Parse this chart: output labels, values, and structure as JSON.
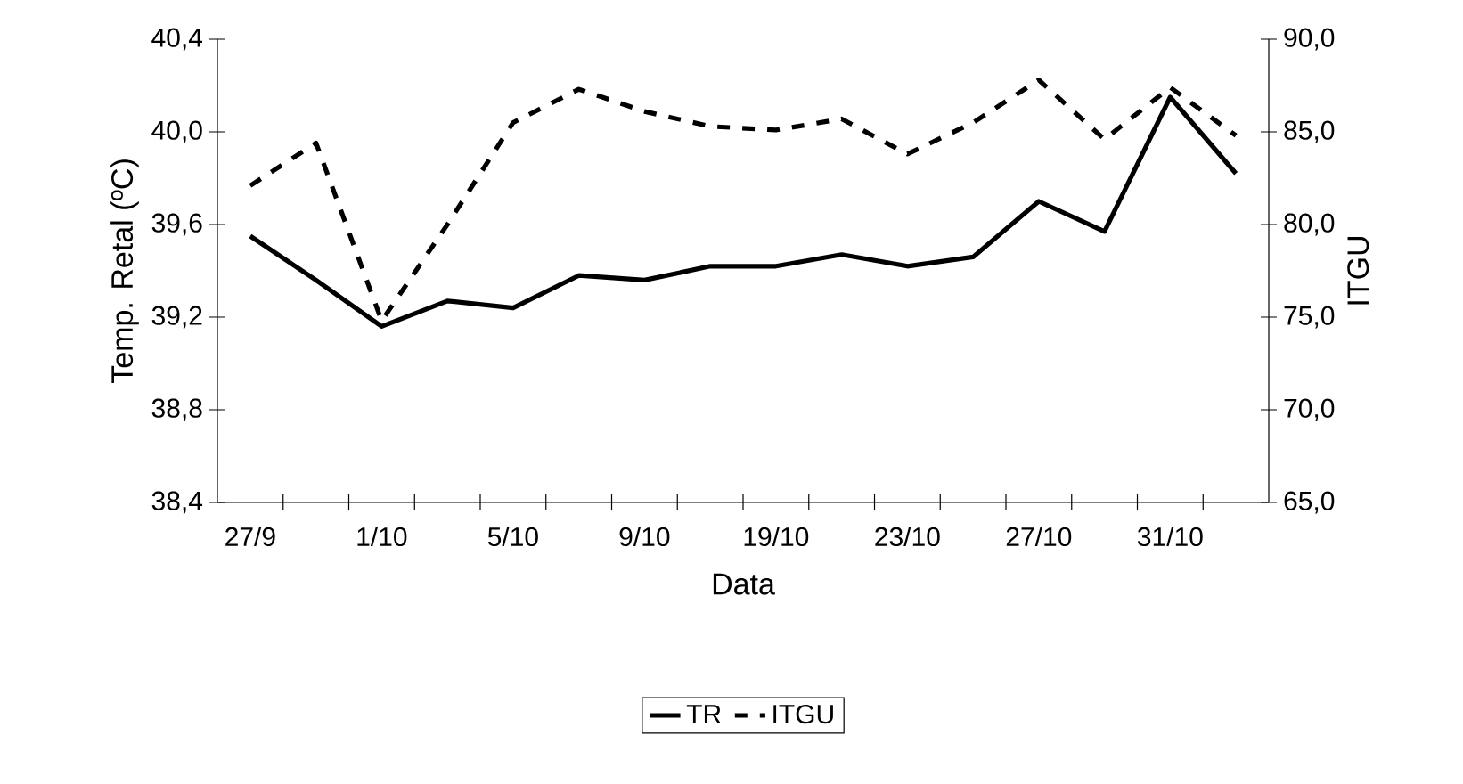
{
  "chart_data": {
    "type": "line",
    "xlabel": "Data",
    "ylabel": "Temp. Retal (ºC)",
    "y2label": "ITGU",
    "categories": [
      "27/9",
      null,
      "1/10",
      null,
      "5/10",
      null,
      "9/10",
      null,
      "19/10",
      null,
      "23/10",
      null,
      "27/10",
      null,
      "31/10",
      null
    ],
    "series": [
      {
        "name": "TR",
        "color": "#000000",
        "line_style": "solid",
        "axis": "y",
        "values": [
          39.55,
          39.36,
          39.16,
          39.27,
          39.24,
          39.38,
          39.36,
          39.42,
          39.42,
          39.47,
          39.42,
          39.46,
          39.7,
          39.57,
          40.15,
          39.82
        ]
      },
      {
        "name": "ITGU",
        "color": "#000000",
        "line_style": "dashed",
        "axis": "y2",
        "values": [
          82.1,
          84.4,
          74.8,
          80.0,
          85.5,
          87.3,
          86.1,
          85.3,
          85.1,
          85.7,
          83.8,
          85.5,
          87.8,
          84.6,
          87.4,
          84.8
        ]
      }
    ],
    "ylim": [
      38.4,
      40.4
    ],
    "yticks": [
      {
        "value": 38.4,
        "label": "38,4"
      },
      {
        "value": 38.8,
        "label": "38,8"
      },
      {
        "value": 39.2,
        "label": "39,2"
      },
      {
        "value": 39.6,
        "label": "39,6"
      },
      {
        "value": 40.0,
        "label": "40,0"
      },
      {
        "value": 40.4,
        "label": "40,4"
      }
    ],
    "y2lim": [
      65,
      90
    ],
    "y2ticks": [
      {
        "value": 65,
        "label": "65,0"
      },
      {
        "value": 70,
        "label": "70,0"
      },
      {
        "value": 75,
        "label": "75,0"
      },
      {
        "value": 80,
        "label": "80,0"
      },
      {
        "value": 85,
        "label": "85,0"
      },
      {
        "value": 90,
        "label": "90,0"
      }
    ],
    "legend": "bottom"
  }
}
